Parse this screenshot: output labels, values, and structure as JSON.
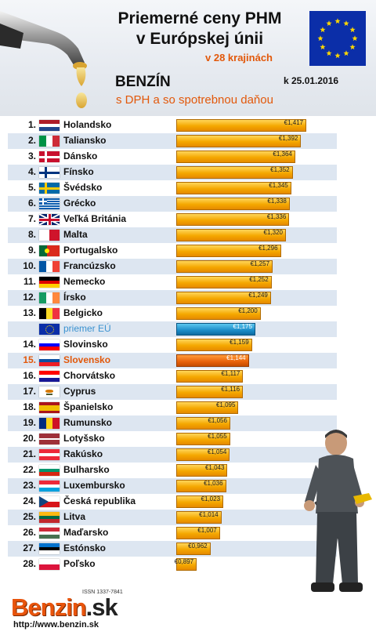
{
  "header": {
    "title_line1": "Priemerné ceny PHM",
    "title_line2": "v Európskej únii",
    "subtitle": "v 28 krajinách",
    "fuel": "BENZÍN",
    "date": "k 25.01.2016",
    "tax_note": "s DPH a so spotrebnou daňou"
  },
  "footer": {
    "issn": "ISSN 1337-7841",
    "logo": "Benzin",
    "logo_suffix": ".sk",
    "url": "http://www.benzin.sk"
  },
  "colors": {
    "bar": "#f5a800",
    "average_bar": "#1b8cc8",
    "slovakia_bar": "#e8620a",
    "accent": "#e2580a"
  },
  "chart_data": {
    "type": "bar",
    "orientation": "horizontal",
    "xlim": [
      0.8,
      1.45
    ],
    "grid": false,
    "rows": [
      {
        "rank": "1.",
        "country": "Holandsko",
        "value": 1.417,
        "label": "€1,417",
        "flag": "nl"
      },
      {
        "rank": "2.",
        "country": "Taliansko",
        "value": 1.392,
        "label": "€1,392",
        "flag": "it"
      },
      {
        "rank": "3.",
        "country": "Dánsko",
        "value": 1.364,
        "label": "€1,364",
        "flag": "dk"
      },
      {
        "rank": "4.",
        "country": "Fínsko",
        "value": 1.352,
        "label": "€1,352",
        "flag": "fi"
      },
      {
        "rank": "5.",
        "country": "Švédsko",
        "value": 1.345,
        "label": "€1,345",
        "flag": "se"
      },
      {
        "rank": "6.",
        "country": "Grécko",
        "value": 1.338,
        "label": "€1,338",
        "flag": "gr"
      },
      {
        "rank": "7.",
        "country": "Veľká Británia",
        "value": 1.336,
        "label": "€1,336",
        "flag": "gb"
      },
      {
        "rank": "8.",
        "country": "Malta",
        "value": 1.32,
        "label": "€1,320",
        "flag": "mt"
      },
      {
        "rank": "9.",
        "country": "Portugalsko",
        "value": 1.296,
        "label": "€1,296",
        "flag": "pt"
      },
      {
        "rank": "10.",
        "country": "Francúzsko",
        "value": 1.257,
        "label": "€1,257",
        "flag": "fr"
      },
      {
        "rank": "11.",
        "country": "Nemecko",
        "value": 1.252,
        "label": "€1,252",
        "flag": "de"
      },
      {
        "rank": "12.",
        "country": "Írsko",
        "value": 1.249,
        "label": "€1,249",
        "flag": "ie"
      },
      {
        "rank": "13.",
        "country": "Belgicko",
        "value": 1.2,
        "label": "€1,200",
        "flag": "be"
      },
      {
        "rank": "",
        "country": "priemer EÚ",
        "value": 1.175,
        "label": "€1,175",
        "flag": "eu",
        "kind": "avg"
      },
      {
        "rank": "14.",
        "country": "Slovinsko",
        "value": 1.159,
        "label": "€1,159",
        "flag": "si"
      },
      {
        "rank": "15.",
        "country": "Slovensko",
        "value": 1.144,
        "label": "€1,144",
        "flag": "sk",
        "kind": "sk"
      },
      {
        "rank": "16.",
        "country": "Chorvátsko",
        "value": 1.117,
        "label": "€1,117",
        "flag": "hr"
      },
      {
        "rank": "17.",
        "country": "Cyprus",
        "value": 1.116,
        "label": "€1,116",
        "flag": "cy"
      },
      {
        "rank": "18.",
        "country": "Španielsko",
        "value": 1.095,
        "label": "€1,095",
        "flag": "es"
      },
      {
        "rank": "19.",
        "country": "Rumunsko",
        "value": 1.056,
        "label": "€1,056",
        "flag": "ro"
      },
      {
        "rank": "20.",
        "country": "Lotyšsko",
        "value": 1.055,
        "label": "€1,055",
        "flag": "lv"
      },
      {
        "rank": "21.",
        "country": "Rakúsko",
        "value": 1.054,
        "label": "€1,054",
        "flag": "at"
      },
      {
        "rank": "22.",
        "country": "Bulharsko",
        "value": 1.043,
        "label": "€1,043",
        "flag": "bg"
      },
      {
        "rank": "23.",
        "country": "Luxembursko",
        "value": 1.036,
        "label": "€1,036",
        "flag": "lu"
      },
      {
        "rank": "24.",
        "country": "Česká republika",
        "value": 1.023,
        "label": "€1,023",
        "flag": "cz"
      },
      {
        "rank": "25.",
        "country": "Litva",
        "value": 1.014,
        "label": "€1,014",
        "flag": "lt"
      },
      {
        "rank": "26.",
        "country": "Maďarsko",
        "value": 1.007,
        "label": "€1,007",
        "flag": "hu"
      },
      {
        "rank": "27.",
        "country": "Estónsko",
        "value": 0.962,
        "label": "€0,962",
        "flag": "ee"
      },
      {
        "rank": "28.",
        "country": "Poľsko",
        "value": 0.897,
        "label": "€0,897",
        "flag": "pl"
      }
    ]
  }
}
